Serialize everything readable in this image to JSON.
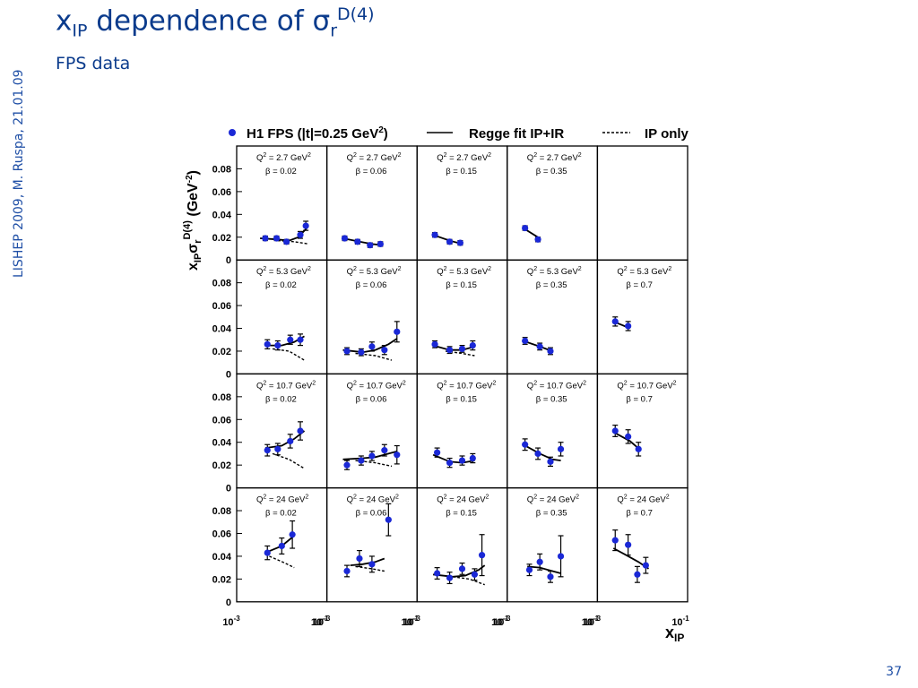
{
  "slide": {
    "title_main": "x",
    "title_sub": "IP",
    "title_mid": " dependence of σ",
    "title_sub2": "r",
    "title_sup": "D(4)",
    "subtitle": "FPS data",
    "side_note": "LISHEP 2009, M. Ruspa, 21.01.09",
    "page_number": "37"
  },
  "chart_data": {
    "type": "scatter",
    "legend": {
      "data_label": "H1 FPS (|t|=0.25 GeV",
      "data_label_sup": "2",
      "data_label_end": ")",
      "fit_label": "Regge fit IP+IR",
      "ip_label": "IP only",
      "placement": "top"
    },
    "ylabel": "x",
    "ylabel_sub": "IP",
    "ylabel_mid": "σ",
    "ylabel_sub2": "r",
    "ylabel_sup": "D(4)",
    "ylabel_unit": " (GeV",
    "ylabel_unit_sup": "-2",
    "ylabel_unit_end": ")",
    "xlabel": "x",
    "xlabel_sub": "IP",
    "x_scale": "log",
    "xlim": [
      0.001,
      0.1
    ],
    "ylim": [
      0,
      0.1
    ],
    "yticks": [
      "0",
      "0.02",
      "0.04",
      "0.06",
      "0.08"
    ],
    "xtick_labels": [
      {
        "base": "10",
        "exp": "-3"
      },
      {
        "base": "10",
        "exp": "-1"
      }
    ],
    "panels": [
      {
        "row": 0,
        "col": 0,
        "q2": "2.7",
        "beta": "0.02",
        "points": [
          {
            "x": 0.004,
            "y": 0.019,
            "e": 0.002
          },
          {
            "x": 0.0075,
            "y": 0.019,
            "e": 0.002
          },
          {
            "x": 0.013,
            "y": 0.016,
            "e": 0.002
          },
          {
            "x": 0.028,
            "y": 0.022,
            "e": 0.003
          },
          {
            "x": 0.038,
            "y": 0.03,
            "e": 0.004
          }
        ],
        "fit": [
          [
            0.003,
            0.019
          ],
          [
            0.008,
            0.018
          ],
          [
            0.015,
            0.017
          ],
          [
            0.025,
            0.02
          ],
          [
            0.04,
            0.028
          ]
        ],
        "ip": [
          [
            0.008,
            0.017
          ],
          [
            0.02,
            0.016
          ],
          [
            0.045,
            0.014
          ]
        ]
      },
      {
        "row": 0,
        "col": 1,
        "q2": "2.7",
        "beta": "0.06",
        "points": [
          {
            "x": 0.0022,
            "y": 0.019,
            "e": 0.002
          },
          {
            "x": 0.0045,
            "y": 0.016,
            "e": 0.002
          },
          {
            "x": 0.009,
            "y": 0.013,
            "e": 0.002
          },
          {
            "x": 0.016,
            "y": 0.014,
            "e": 0.002
          }
        ],
        "fit": [
          [
            0.002,
            0.019
          ],
          [
            0.005,
            0.016
          ],
          [
            0.01,
            0.014
          ],
          [
            0.018,
            0.013
          ]
        ],
        "ip": []
      },
      {
        "row": 0,
        "col": 2,
        "q2": "2.7",
        "beta": "0.15",
        "points": [
          {
            "x": 0.0022,
            "y": 0.022,
            "e": 0.002
          },
          {
            "x": 0.005,
            "y": 0.016,
            "e": 0.002
          },
          {
            "x": 0.009,
            "y": 0.015,
            "e": 0.002
          }
        ],
        "fit": [
          [
            0.002,
            0.022
          ],
          [
            0.005,
            0.017
          ],
          [
            0.01,
            0.014
          ]
        ],
        "ip": []
      },
      {
        "row": 0,
        "col": 3,
        "q2": "2.7",
        "beta": "0.35",
        "points": [
          {
            "x": 0.0022,
            "y": 0.028,
            "e": 0.002
          },
          {
            "x": 0.0045,
            "y": 0.018,
            "e": 0.002
          }
        ],
        "fit": [
          [
            0.002,
            0.028
          ],
          [
            0.0045,
            0.02
          ]
        ],
        "ip": []
      },
      {
        "row": 1,
        "col": 0,
        "q2": "5.3",
        "beta": "0.02",
        "points": [
          {
            "x": 0.0045,
            "y": 0.026,
            "e": 0.004
          },
          {
            "x": 0.008,
            "y": 0.025,
            "e": 0.004
          },
          {
            "x": 0.016,
            "y": 0.03,
            "e": 0.004
          },
          {
            "x": 0.028,
            "y": 0.03,
            "e": 0.005
          }
        ],
        "fit": [
          [
            0.004,
            0.025
          ],
          [
            0.01,
            0.025
          ],
          [
            0.02,
            0.028
          ],
          [
            0.035,
            0.033
          ]
        ],
        "ip": [
          [
            0.006,
            0.022
          ],
          [
            0.015,
            0.02
          ],
          [
            0.035,
            0.012
          ]
        ]
      },
      {
        "row": 1,
        "col": 1,
        "q2": "5.3",
        "beta": "0.06",
        "points": [
          {
            "x": 0.0025,
            "y": 0.02,
            "e": 0.003
          },
          {
            "x": 0.0055,
            "y": 0.019,
            "e": 0.003
          },
          {
            "x": 0.01,
            "y": 0.024,
            "e": 0.004
          },
          {
            "x": 0.02,
            "y": 0.021,
            "e": 0.004
          },
          {
            "x": 0.04,
            "y": 0.037,
            "e": 0.009
          }
        ],
        "fit": [
          [
            0.002,
            0.021
          ],
          [
            0.006,
            0.019
          ],
          [
            0.012,
            0.021
          ],
          [
            0.025,
            0.026
          ],
          [
            0.04,
            0.031
          ]
        ],
        "ip": [
          [
            0.004,
            0.018
          ],
          [
            0.012,
            0.016
          ],
          [
            0.03,
            0.012
          ]
        ]
      },
      {
        "row": 1,
        "col": 2,
        "q2": "5.3",
        "beta": "0.15",
        "points": [
          {
            "x": 0.0022,
            "y": 0.026,
            "e": 0.003
          },
          {
            "x": 0.005,
            "y": 0.021,
            "e": 0.003
          },
          {
            "x": 0.01,
            "y": 0.022,
            "e": 0.003
          },
          {
            "x": 0.018,
            "y": 0.025,
            "e": 0.004
          }
        ],
        "fit": [
          [
            0.002,
            0.025
          ],
          [
            0.005,
            0.021
          ],
          [
            0.01,
            0.021
          ],
          [
            0.02,
            0.024
          ]
        ],
        "ip": [
          [
            0.004,
            0.02
          ],
          [
            0.01,
            0.018
          ],
          [
            0.02,
            0.016
          ]
        ]
      },
      {
        "row": 1,
        "col": 3,
        "q2": "5.3",
        "beta": "0.35",
        "points": [
          {
            "x": 0.0022,
            "y": 0.029,
            "e": 0.003
          },
          {
            "x": 0.005,
            "y": 0.024,
            "e": 0.003
          },
          {
            "x": 0.009,
            "y": 0.02,
            "e": 0.003
          }
        ],
        "fit": [
          [
            0.002,
            0.029
          ],
          [
            0.005,
            0.024
          ],
          [
            0.01,
            0.02
          ]
        ],
        "ip": []
      },
      {
        "row": 1,
        "col": 4,
        "q2": "5.3",
        "beta": "0.7",
        "points": [
          {
            "x": 0.0022,
            "y": 0.046,
            "e": 0.004
          },
          {
            "x": 0.0045,
            "y": 0.042,
            "e": 0.004
          }
        ],
        "fit": [
          [
            0.002,
            0.046
          ],
          [
            0.005,
            0.04
          ]
        ],
        "ip": []
      },
      {
        "row": 2,
        "col": 0,
        "q2": "10.7",
        "beta": "0.02",
        "points": [
          {
            "x": 0.0045,
            "y": 0.033,
            "e": 0.005
          },
          {
            "x": 0.008,
            "y": 0.034,
            "e": 0.005
          },
          {
            "x": 0.016,
            "y": 0.041,
            "e": 0.006
          },
          {
            "x": 0.028,
            "y": 0.05,
            "e": 0.008
          }
        ],
        "fit": [
          [
            0.004,
            0.035
          ],
          [
            0.01,
            0.037
          ],
          [
            0.02,
            0.043
          ],
          [
            0.035,
            0.05
          ]
        ],
        "ip": [
          [
            0.006,
            0.03
          ],
          [
            0.015,
            0.025
          ],
          [
            0.035,
            0.017
          ]
        ]
      },
      {
        "row": 2,
        "col": 1,
        "q2": "10.7",
        "beta": "0.06",
        "points": [
          {
            "x": 0.0025,
            "y": 0.02,
            "e": 0.004
          },
          {
            "x": 0.0055,
            "y": 0.024,
            "e": 0.004
          },
          {
            "x": 0.01,
            "y": 0.028,
            "e": 0.004
          },
          {
            "x": 0.02,
            "y": 0.033,
            "e": 0.005
          },
          {
            "x": 0.04,
            "y": 0.029,
            "e": 0.008
          }
        ],
        "fit": [
          [
            0.002,
            0.025
          ],
          [
            0.006,
            0.026
          ],
          [
            0.012,
            0.027
          ],
          [
            0.025,
            0.03
          ],
          [
            0.04,
            0.032
          ]
        ],
        "ip": [
          [
            0.004,
            0.024
          ],
          [
            0.012,
            0.022
          ],
          [
            0.03,
            0.019
          ]
        ]
      },
      {
        "row": 2,
        "col": 2,
        "q2": "10.7",
        "beta": "0.15",
        "points": [
          {
            "x": 0.0025,
            "y": 0.031,
            "e": 0.004
          },
          {
            "x": 0.005,
            "y": 0.022,
            "e": 0.004
          },
          {
            "x": 0.01,
            "y": 0.024,
            "e": 0.004
          },
          {
            "x": 0.018,
            "y": 0.026,
            "e": 0.004
          }
        ],
        "fit": [
          [
            0.002,
            0.029
          ],
          [
            0.005,
            0.023
          ],
          [
            0.01,
            0.022
          ],
          [
            0.02,
            0.024
          ]
        ],
        "ip": []
      },
      {
        "row": 2,
        "col": 3,
        "q2": "10.7",
        "beta": "0.35",
        "points": [
          {
            "x": 0.0022,
            "y": 0.038,
            "e": 0.005
          },
          {
            "x": 0.0045,
            "y": 0.03,
            "e": 0.005
          },
          {
            "x": 0.009,
            "y": 0.023,
            "e": 0.004
          },
          {
            "x": 0.016,
            "y": 0.034,
            "e": 0.006
          }
        ],
        "fit": [
          [
            0.002,
            0.038
          ],
          [
            0.005,
            0.03
          ],
          [
            0.01,
            0.025
          ],
          [
            0.016,
            0.024
          ]
        ],
        "ip": []
      },
      {
        "row": 2,
        "col": 4,
        "q2": "10.7",
        "beta": "0.7",
        "points": [
          {
            "x": 0.0022,
            "y": 0.05,
            "e": 0.005
          },
          {
            "x": 0.0045,
            "y": 0.045,
            "e": 0.006
          },
          {
            "x": 0.008,
            "y": 0.034,
            "e": 0.006
          }
        ],
        "fit": [
          [
            0.002,
            0.049
          ],
          [
            0.005,
            0.041
          ],
          [
            0.009,
            0.033
          ]
        ],
        "ip": []
      },
      {
        "row": 3,
        "col": 0,
        "q2": "24",
        "beta": "0.02",
        "points": [
          {
            "x": 0.0045,
            "y": 0.043,
            "e": 0.006
          },
          {
            "x": 0.01,
            "y": 0.049,
            "e": 0.007
          },
          {
            "x": 0.018,
            "y": 0.059,
            "e": 0.012
          }
        ],
        "fit": [
          [
            0.004,
            0.043
          ],
          [
            0.01,
            0.049
          ],
          [
            0.02,
            0.058
          ]
        ],
        "ip": [
          [
            0.005,
            0.04
          ],
          [
            0.012,
            0.034
          ],
          [
            0.02,
            0.03
          ]
        ]
      },
      {
        "row": 3,
        "col": 1,
        "q2": "24",
        "beta": "0.06",
        "points": [
          {
            "x": 0.0025,
            "y": 0.027,
            "e": 0.005
          },
          {
            "x": 0.005,
            "y": 0.038,
            "e": 0.007
          },
          {
            "x": 0.01,
            "y": 0.033,
            "e": 0.007
          },
          {
            "x": 0.025,
            "y": 0.072,
            "e": 0.014
          }
        ],
        "fit": [
          [
            0.003,
            0.032
          ],
          [
            0.006,
            0.033
          ],
          [
            0.012,
            0.035
          ],
          [
            0.02,
            0.038
          ]
        ],
        "ip": [
          [
            0.004,
            0.031
          ],
          [
            0.01,
            0.029
          ],
          [
            0.02,
            0.027
          ]
        ]
      },
      {
        "row": 3,
        "col": 2,
        "q2": "24",
        "beta": "0.15",
        "points": [
          {
            "x": 0.0025,
            "y": 0.025,
            "e": 0.005
          },
          {
            "x": 0.005,
            "y": 0.021,
            "e": 0.005
          },
          {
            "x": 0.01,
            "y": 0.029,
            "e": 0.005
          },
          {
            "x": 0.02,
            "y": 0.024,
            "e": 0.005
          },
          {
            "x": 0.03,
            "y": 0.041,
            "e": 0.018
          }
        ],
        "fit": [
          [
            0.002,
            0.024
          ],
          [
            0.006,
            0.022
          ],
          [
            0.012,
            0.023
          ],
          [
            0.025,
            0.028
          ],
          [
            0.035,
            0.032
          ]
        ],
        "ip": [
          [
            0.006,
            0.022
          ],
          [
            0.015,
            0.02
          ],
          [
            0.035,
            0.015
          ]
        ]
      },
      {
        "row": 3,
        "col": 3,
        "q2": "24",
        "beta": "0.35",
        "points": [
          {
            "x": 0.0028,
            "y": 0.028,
            "e": 0.005
          },
          {
            "x": 0.005,
            "y": 0.035,
            "e": 0.007
          },
          {
            "x": 0.009,
            "y": 0.022,
            "e": 0.005
          },
          {
            "x": 0.016,
            "y": 0.04,
            "e": 0.018
          }
        ],
        "fit": [
          [
            0.0025,
            0.031
          ],
          [
            0.005,
            0.03
          ],
          [
            0.01,
            0.027
          ],
          [
            0.016,
            0.025
          ]
        ],
        "ip": []
      },
      {
        "row": 3,
        "col": 4,
        "q2": "24",
        "beta": "0.7",
        "points": [
          {
            "x": 0.0022,
            "y": 0.054,
            "e": 0.009
          },
          {
            "x": 0.0045,
            "y": 0.05,
            "e": 0.009
          },
          {
            "x": 0.0075,
            "y": 0.024,
            "e": 0.007
          },
          {
            "x": 0.012,
            "y": 0.032,
            "e": 0.007
          }
        ],
        "fit": [
          [
            0.002,
            0.047
          ],
          [
            0.004,
            0.041
          ],
          [
            0.008,
            0.035
          ],
          [
            0.014,
            0.029
          ]
        ],
        "ip": []
      }
    ],
    "q2_prefix": "Q",
    "q2_unit": " GeV",
    "beta_prefix": "β = "
  }
}
